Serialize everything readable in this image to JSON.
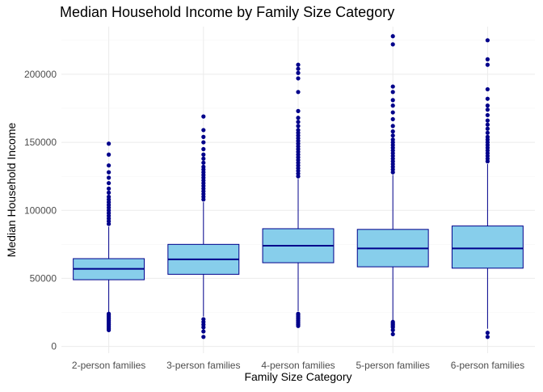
{
  "chart_data": {
    "type": "boxplot",
    "title": "Median Household Income by Family Size Category",
    "xlabel": "Family Size Category",
    "ylabel": "Median Household Income",
    "ylim": [
      -5000,
      235000
    ],
    "y_ticks": [
      0,
      50000,
      100000,
      150000,
      200000
    ],
    "y_tick_labels": [
      "0",
      "50000",
      "100000",
      "150000",
      "200000"
    ],
    "grid": true,
    "legend": "none",
    "colors": {
      "box_fill": "#87ceeb",
      "box_stroke": "#00008b",
      "median": "#00008b",
      "outlier": "#00008b",
      "grid_major": "#ebebeb",
      "grid_minor": "#f5f5f5"
    },
    "categories": [
      "2-person families",
      "3-person families",
      "4-person families",
      "5-person families",
      "6-person families"
    ],
    "boxes": [
      {
        "category": "2-person families",
        "lower_whisker": 25000,
        "q1": 49000,
        "median": 57000,
        "q3": 64500,
        "upper_whisker": 88000,
        "outliers": [
          12000,
          13000,
          14000,
          15000,
          16000,
          17000,
          18000,
          19000,
          20000,
          21000,
          22000,
          23000,
          24000,
          90000,
          92000,
          94000,
          96000,
          98000,
          100000,
          102000,
          104000,
          106000,
          108000,
          110000,
          113000,
          116000,
          120000,
          124000,
          128000,
          133000,
          141000,
          149000
        ]
      },
      {
        "category": "3-person families",
        "lower_whisker": 22000,
        "q1": 53000,
        "median": 64000,
        "q3": 75000,
        "upper_whisker": 106000,
        "outliers": [
          7000,
          11000,
          14000,
          16000,
          18000,
          20000,
          108000,
          110000,
          112000,
          114000,
          116000,
          118000,
          120000,
          122000,
          124000,
          126000,
          128000,
          130000,
          132000,
          135000,
          138000,
          141000,
          145000,
          150000,
          154000,
          159000,
          169000
        ]
      },
      {
        "category": "4-person families",
        "lower_whisker": 26000,
        "q1": 61500,
        "median": 74000,
        "q3": 86500,
        "upper_whisker": 123000,
        "outliers": [
          15000,
          16000,
          17000,
          18000,
          19000,
          20000,
          21000,
          22000,
          23000,
          24000,
          125000,
          127000,
          129000,
          131000,
          133000,
          135000,
          137000,
          139000,
          141000,
          143000,
          145000,
          147000,
          149000,
          151000,
          153000,
          155000,
          157000,
          159000,
          162000,
          165000,
          168000,
          173000,
          187000,
          197000,
          201000,
          204000,
          207000
        ]
      },
      {
        "category": "5-person families",
        "lower_whisker": 19000,
        "q1": 58500,
        "median": 72000,
        "q3": 86000,
        "upper_whisker": 126000,
        "outliers": [
          9000,
          12000,
          14000,
          15000,
          16000,
          17000,
          18000,
          128000,
          130000,
          132000,
          134000,
          136000,
          138000,
          140000,
          142000,
          144000,
          146000,
          148000,
          150000,
          152000,
          155000,
          158000,
          162000,
          167000,
          172000,
          177000,
          181000,
          187000,
          191000,
          222000,
          228000
        ]
      },
      {
        "category": "6-person families",
        "lower_whisker": 13000,
        "q1": 57500,
        "median": 72000,
        "q3": 88500,
        "upper_whisker": 134000,
        "outliers": [
          7000,
          10000,
          136000,
          138000,
          140000,
          142000,
          144000,
          146000,
          148000,
          150000,
          152000,
          154000,
          157000,
          160000,
          163000,
          166000,
          170000,
          174000,
          177000,
          182000,
          189000,
          207000,
          211000,
          225000
        ]
      }
    ]
  }
}
